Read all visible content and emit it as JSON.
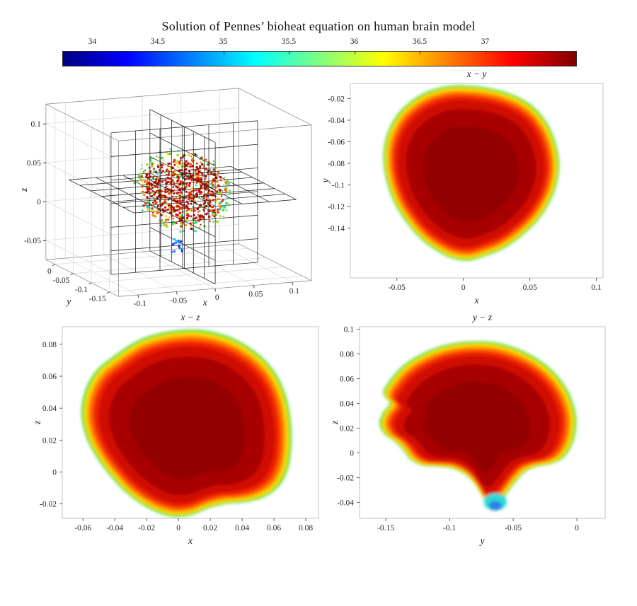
{
  "title": "Solution of Pennes’ bioheat equation on human brain model",
  "colorbar": {
    "range": [
      33.77,
      37.7
    ],
    "ticks": [
      34,
      34.5,
      35,
      35.5,
      36,
      36.5,
      37
    ],
    "colormap": "jet",
    "gradient_stops": [
      [
        "#00007f",
        0
      ],
      [
        "#0000ff",
        0.125
      ],
      [
        "#00ffff",
        0.375
      ],
      [
        "#ffff00",
        0.625
      ],
      [
        "#ff0000",
        0.875
      ],
      [
        "#7f0000",
        1
      ]
    ]
  },
  "heat_layers": [
    {
      "color": "#35d331",
      "scale": 1.0
    },
    {
      "color": "#b6e621",
      "scale": 0.985
    },
    {
      "color": "#ffdd00",
      "scale": 0.968
    },
    {
      "color": "#ffa200",
      "scale": 0.948
    },
    {
      "color": "#ff5f00",
      "scale": 0.922
    },
    {
      "color": "#ef2200",
      "scale": 0.888
    },
    {
      "color": "#cf0d00",
      "scale": 0.84
    },
    {
      "color": "#a80300",
      "scale": 0.74
    },
    {
      "color": "#930000",
      "scale": 0.55
    }
  ],
  "chart_data": [
    {
      "id": "view3d",
      "type": "scatter3d-slices",
      "title": "",
      "xlabel": "x",
      "ylabel": "y",
      "zlabel": "z",
      "xlim": [
        -0.125,
        0.125
      ],
      "ylim": [
        -0.175,
        0.025
      ],
      "zlim": [
        -0.075,
        0.125
      ],
      "xticks": [
        -0.1,
        -0.05,
        0,
        0.05,
        0.1
      ],
      "yticks": [
        0,
        -0.05,
        -0.1,
        -0.15
      ],
      "zticks": [
        0.1,
        0.05,
        0,
        -0.05
      ],
      "slices": {
        "x": 0.005,
        "y": -0.08,
        "z": 0.028
      },
      "slice_spans": {
        "x_plane": {
          "y": [
            -0.165,
            0.015
          ],
          "z": [
            -0.072,
            0.11
          ]
        },
        "y_plane": {
          "x": [
            -0.09,
            0.1
          ],
          "z": [
            -0.072,
            0.11
          ]
        },
        "z_plane": {
          "x": [
            -0.1,
            0.11
          ],
          "y": [
            -0.165,
            0.015
          ]
        }
      },
      "grid_divisions": 6,
      "cloud": {
        "center": [
          0.005,
          -0.075,
          0.027
        ],
        "radii": [
          0.056,
          0.068,
          0.052
        ],
        "count": 780
      },
      "cold_spot": {
        "center": [
          0.003,
          -0.062,
          -0.047
        ],
        "radii": [
          0.007,
          0.007,
          0.009
        ],
        "count": 16
      },
      "point_colors": {
        "core": [
          "#cf1400",
          "#b20a00",
          "#970000",
          "#e23000",
          "#c11000"
        ],
        "mid": [
          "#ff8c00",
          "#ffc800",
          "#ff5f00"
        ],
        "rim": [
          "#38d52b",
          "#98e32a",
          "#2bd4a8"
        ],
        "cold": [
          "#1e6fff",
          "#19c8f0",
          "#1040dd"
        ]
      }
    },
    {
      "id": "xy",
      "type": "heat-slice",
      "title": "x − y",
      "xlabel": "x",
      "ylabel": "y",
      "xlim": [
        -0.085,
        0.105
      ],
      "ylim": [
        -0.186,
        -0.006
      ],
      "xticks": [
        -0.05,
        0,
        0.05,
        0.1
      ],
      "yticks": [
        -0.02,
        -0.04,
        -0.06,
        -0.08,
        -0.1,
        -0.12,
        -0.14
      ],
      "outline": [
        [
          -0.008,
          -0.008
        ],
        [
          0.018,
          -0.01
        ],
        [
          0.038,
          -0.017
        ],
        [
          0.053,
          -0.028
        ],
        [
          0.063,
          -0.043
        ],
        [
          0.069,
          -0.06
        ],
        [
          0.072,
          -0.08
        ],
        [
          0.07,
          -0.1
        ],
        [
          0.064,
          -0.118
        ],
        [
          0.055,
          -0.134
        ],
        [
          0.043,
          -0.148
        ],
        [
          0.03,
          -0.159
        ],
        [
          0.016,
          -0.166
        ],
        [
          0.004,
          -0.17
        ],
        [
          -0.008,
          -0.168
        ],
        [
          -0.02,
          -0.161
        ],
        [
          -0.032,
          -0.15
        ],
        [
          -0.042,
          -0.136
        ],
        [
          -0.051,
          -0.119
        ],
        [
          -0.057,
          -0.1
        ],
        [
          -0.06,
          -0.08
        ],
        [
          -0.059,
          -0.06
        ],
        [
          -0.053,
          -0.041
        ],
        [
          -0.043,
          -0.026
        ],
        [
          -0.028,
          -0.014
        ]
      ],
      "spots": []
    },
    {
      "id": "xz",
      "type": "heat-slice",
      "title": "x − z",
      "xlabel": "x",
      "ylabel": "z",
      "xlim": [
        -0.073,
        0.088
      ],
      "ylim": [
        -0.029,
        0.091
      ],
      "xticks": [
        -0.06,
        -0.04,
        -0.02,
        0,
        0.02,
        0.04,
        0.06,
        0.08
      ],
      "yticks": [
        0.08,
        0.06,
        0.04,
        0.02,
        0,
        -0.02
      ],
      "outline": [
        [
          -0.04,
          0.073
        ],
        [
          -0.024,
          0.083
        ],
        [
          -0.006,
          0.088
        ],
        [
          0.013,
          0.089
        ],
        [
          0.031,
          0.085
        ],
        [
          0.046,
          0.077
        ],
        [
          0.058,
          0.066
        ],
        [
          0.066,
          0.052
        ],
        [
          0.07,
          0.036
        ],
        [
          0.071,
          0.019
        ],
        [
          0.069,
          0.003
        ],
        [
          0.063,
          -0.009
        ],
        [
          0.053,
          -0.016
        ],
        [
          0.041,
          -0.019
        ],
        [
          0.029,
          -0.02
        ],
        [
          0.018,
          -0.023
        ],
        [
          0.008,
          -0.027
        ],
        [
          -0.003,
          -0.028
        ],
        [
          -0.014,
          -0.025
        ],
        [
          -0.025,
          -0.019
        ],
        [
          -0.035,
          -0.011
        ],
        [
          -0.044,
          -0.001
        ],
        [
          -0.052,
          0.01
        ],
        [
          -0.058,
          0.022
        ],
        [
          -0.061,
          0.036
        ],
        [
          -0.059,
          0.05
        ],
        [
          -0.052,
          0.063
        ]
      ],
      "spots": []
    },
    {
      "id": "yz",
      "type": "heat-slice",
      "title": "y − z",
      "xlabel": "y",
      "ylabel": "z",
      "xlim": [
        -0.1706,
        0.0222
      ],
      "ylim": [
        -0.0528,
        0.102
      ],
      "xticks": [
        -0.15,
        -0.1,
        -0.05,
        0
      ],
      "yticks": [
        0.1,
        0.08,
        0.06,
        0.04,
        0.02,
        0,
        -0.02,
        -0.04
      ],
      "outline": [
        [
          -0.148,
          0.057
        ],
        [
          -0.137,
          0.07
        ],
        [
          -0.122,
          0.08
        ],
        [
          -0.104,
          0.087
        ],
        [
          -0.084,
          0.09
        ],
        [
          -0.063,
          0.089
        ],
        [
          -0.044,
          0.083
        ],
        [
          -0.028,
          0.074
        ],
        [
          -0.015,
          0.062
        ],
        [
          -0.006,
          0.048
        ],
        [
          -0.001,
          0.032
        ],
        [
          -0.001,
          0.017
        ],
        [
          -0.005,
          0.004
        ],
        [
          -0.012,
          -0.005
        ],
        [
          -0.021,
          -0.009
        ],
        [
          -0.031,
          -0.011
        ],
        [
          -0.04,
          -0.015
        ],
        [
          -0.047,
          -0.022
        ],
        [
          -0.053,
          -0.03
        ],
        [
          -0.059,
          -0.038
        ],
        [
          -0.064,
          -0.043
        ],
        [
          -0.071,
          -0.04
        ],
        [
          -0.076,
          -0.032
        ],
        [
          -0.082,
          -0.023
        ],
        [
          -0.09,
          -0.016
        ],
        [
          -0.1,
          -0.012
        ],
        [
          -0.111,
          -0.011
        ],
        [
          -0.122,
          -0.01
        ],
        [
          -0.131,
          -0.005
        ],
        [
          -0.137,
          0.003
        ],
        [
          -0.144,
          0.01
        ],
        [
          -0.151,
          0.015
        ],
        [
          -0.155,
          0.024
        ],
        [
          -0.152,
          0.033
        ],
        [
          -0.147,
          0.04
        ],
        [
          -0.152,
          0.048
        ]
      ],
      "spots": [
        {
          "cx": -0.064,
          "cy": -0.0395,
          "rx": 0.009,
          "ry": 0.007,
          "color": "#2fd8d8"
        },
        {
          "cx": -0.064,
          "cy": -0.0425,
          "rx": 0.005,
          "ry": 0.0038,
          "color": "#2f7fe8"
        }
      ]
    }
  ]
}
